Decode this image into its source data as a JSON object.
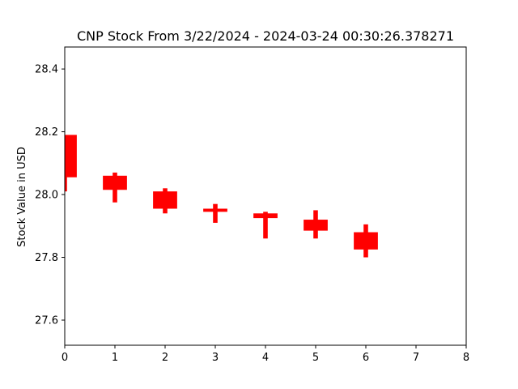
{
  "chart_data": {
    "type": "candlestick",
    "title": "CNP Stock From 3/22/2024 - 2024-03-24 00:30:26.378271",
    "xlabel": "",
    "ylabel": "Stock Value in USD",
    "xlim": [
      0,
      8
    ],
    "ylim": [
      27.52,
      28.47
    ],
    "x_ticks": [
      0,
      1,
      2,
      3,
      4,
      5,
      6,
      7,
      8
    ],
    "y_ticks": [
      "27.6",
      "27.8",
      "28.0",
      "28.2",
      "28.4"
    ],
    "grid": false,
    "color": "#ff0000",
    "candles": [
      {
        "x": 0,
        "open": 28.19,
        "close": 28.055,
        "high": 28.19,
        "low": 28.01
      },
      {
        "x": 1,
        "open": 28.06,
        "close": 28.015,
        "high": 28.07,
        "low": 27.975
      },
      {
        "x": 2,
        "open": 28.01,
        "close": 27.955,
        "high": 28.02,
        "low": 27.94
      },
      {
        "x": 3,
        "open": 27.955,
        "close": 27.945,
        "high": 27.97,
        "low": 27.91
      },
      {
        "x": 4,
        "open": 27.94,
        "close": 27.925,
        "high": 27.945,
        "low": 27.86
      },
      {
        "x": 5,
        "open": 27.92,
        "close": 27.885,
        "high": 27.95,
        "low": 27.86
      },
      {
        "x": 6,
        "open": 27.88,
        "close": 27.825,
        "high": 27.905,
        "low": 27.8
      }
    ]
  }
}
